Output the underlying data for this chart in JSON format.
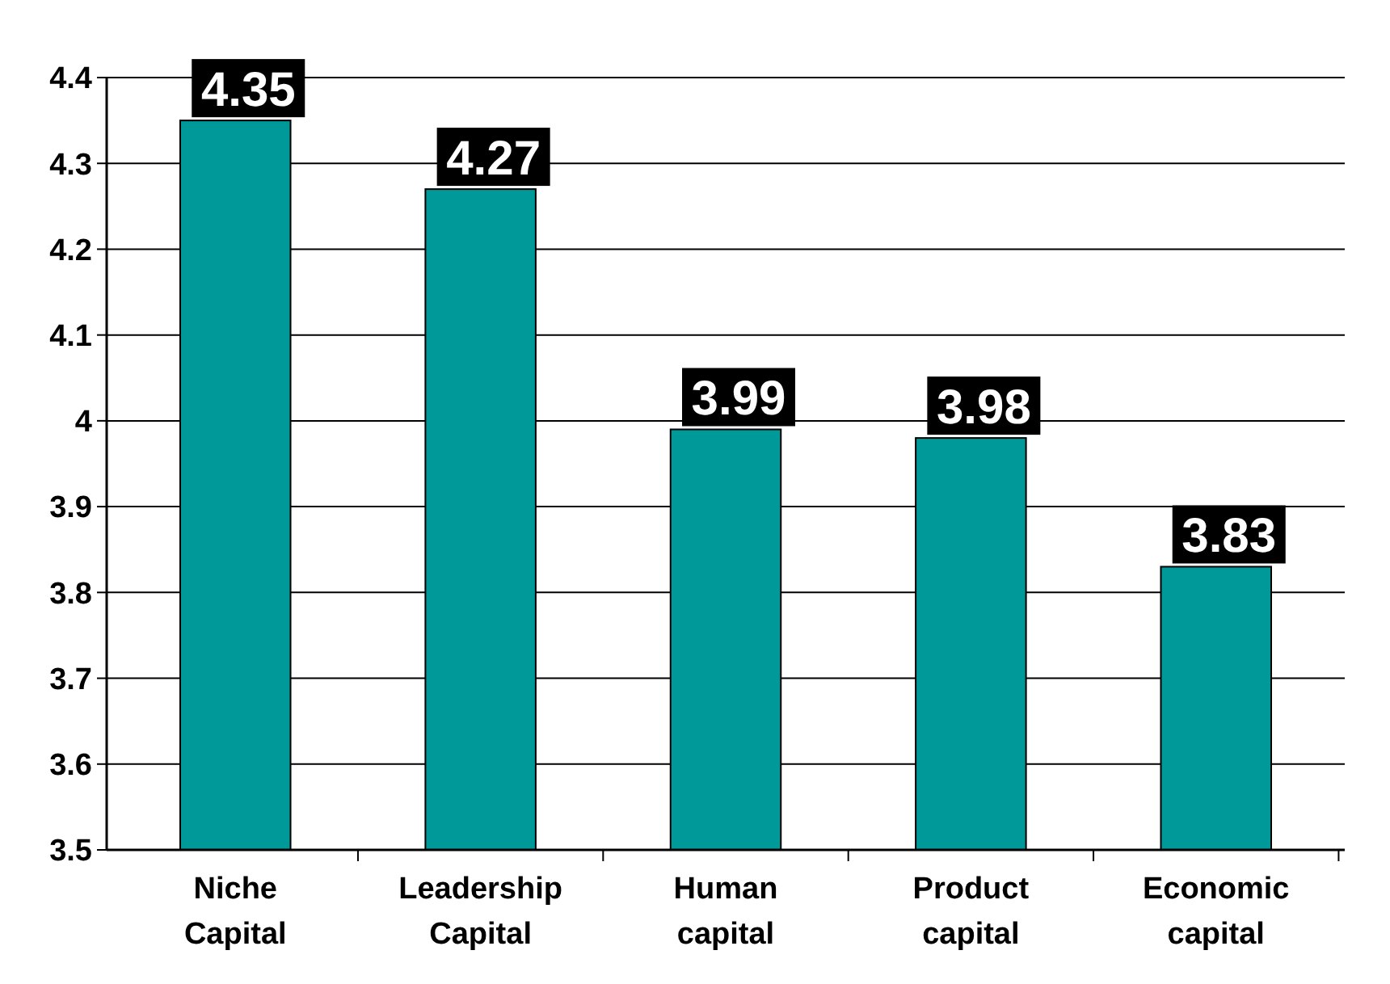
{
  "chart_data": {
    "type": "bar",
    "categories": [
      "Niche Capital",
      "Leadership Capital",
      "Human capital",
      "Product capital",
      "Economic capital"
    ],
    "values": [
      4.35,
      4.27,
      3.99,
      3.98,
      3.83
    ],
    "color": "#009999",
    "ylim": [
      3.5,
      4.4
    ],
    "yticks": [
      3.5,
      3.6,
      3.7,
      3.8,
      3.9,
      4,
      4.1,
      4.2,
      4.3,
      4.4
    ],
    "grid": "y",
    "data_labels": true
  }
}
